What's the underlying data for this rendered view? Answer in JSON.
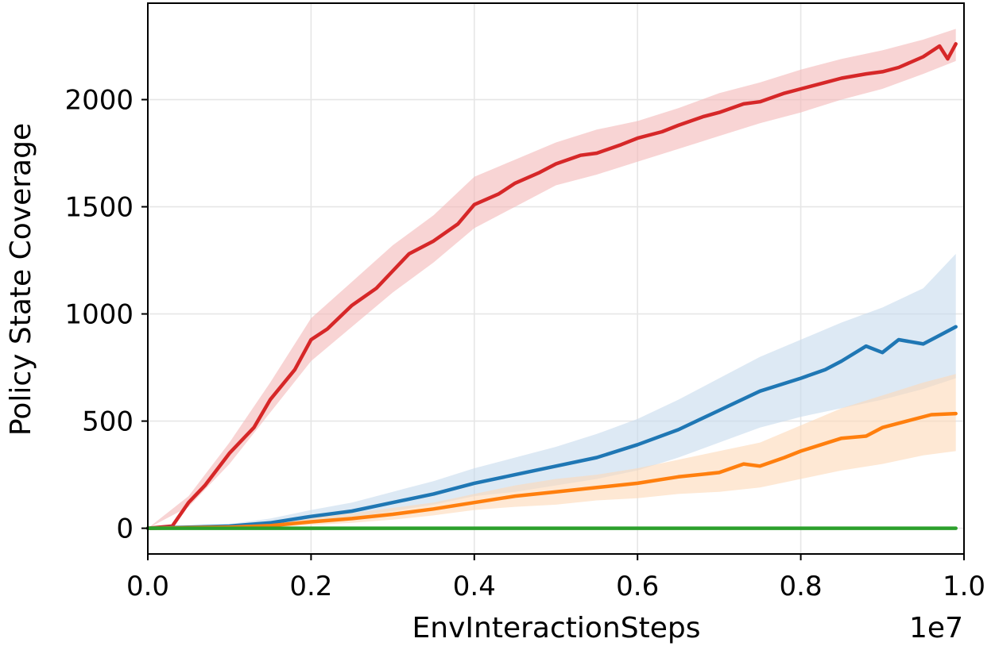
{
  "chart_data": {
    "type": "line",
    "title": "",
    "xlabel": "EnvInteractionSteps",
    "ylabel": "Policy State Coverage",
    "x_offset_label": "1e7",
    "xlim": [
      0.0,
      1.0
    ],
    "ylim": [
      -120,
      2450
    ],
    "x_ticks": [
      0.0,
      0.2,
      0.4,
      0.6,
      0.8,
      1.0
    ],
    "x_tick_labels": [
      "0.0",
      "0.2",
      "0.4",
      "0.6",
      "0.8",
      "1.0"
    ],
    "y_ticks": [
      0,
      500,
      1000,
      1500,
      2000
    ],
    "y_tick_labels": [
      "0",
      "500",
      "1000",
      "1500",
      "2000"
    ],
    "grid": true,
    "legend": "none",
    "series": [
      {
        "color": "#d62728",
        "fill": "#f4b8b8",
        "points": [
          [
            0.0,
            0
          ],
          [
            0.03,
            10
          ],
          [
            0.05,
            120
          ],
          [
            0.07,
            200
          ],
          [
            0.1,
            350
          ],
          [
            0.13,
            470
          ],
          [
            0.15,
            600
          ],
          [
            0.18,
            740
          ],
          [
            0.2,
            880
          ],
          [
            0.22,
            930
          ],
          [
            0.25,
            1040
          ],
          [
            0.28,
            1120
          ],
          [
            0.3,
            1200
          ],
          [
            0.32,
            1280
          ],
          [
            0.35,
            1340
          ],
          [
            0.38,
            1420
          ],
          [
            0.4,
            1510
          ],
          [
            0.43,
            1560
          ],
          [
            0.45,
            1610
          ],
          [
            0.48,
            1660
          ],
          [
            0.5,
            1700
          ],
          [
            0.53,
            1740
          ],
          [
            0.55,
            1750
          ],
          [
            0.58,
            1790
          ],
          [
            0.6,
            1820
          ],
          [
            0.63,
            1850
          ],
          [
            0.65,
            1880
          ],
          [
            0.68,
            1920
          ],
          [
            0.7,
            1940
          ],
          [
            0.73,
            1980
          ],
          [
            0.75,
            1990
          ],
          [
            0.78,
            2030
          ],
          [
            0.8,
            2050
          ],
          [
            0.83,
            2080
          ],
          [
            0.85,
            2100
          ],
          [
            0.88,
            2120
          ],
          [
            0.9,
            2130
          ],
          [
            0.92,
            2150
          ],
          [
            0.95,
            2200
          ],
          [
            0.97,
            2250
          ],
          [
            0.98,
            2190
          ],
          [
            0.99,
            2260
          ]
        ],
        "band": [
          [
            0.0,
            0,
            0
          ],
          [
            0.05,
            100,
            150
          ],
          [
            0.1,
            300,
            400
          ],
          [
            0.15,
            540,
            680
          ],
          [
            0.2,
            780,
            980
          ],
          [
            0.25,
            940,
            1150
          ],
          [
            0.3,
            1100,
            1320
          ],
          [
            0.35,
            1240,
            1460
          ],
          [
            0.4,
            1400,
            1640
          ],
          [
            0.45,
            1500,
            1720
          ],
          [
            0.5,
            1600,
            1800
          ],
          [
            0.55,
            1650,
            1860
          ],
          [
            0.6,
            1710,
            1900
          ],
          [
            0.65,
            1770,
            1960
          ],
          [
            0.7,
            1830,
            2030
          ],
          [
            0.75,
            1890,
            2080
          ],
          [
            0.8,
            1940,
            2140
          ],
          [
            0.85,
            2000,
            2190
          ],
          [
            0.9,
            2050,
            2230
          ],
          [
            0.95,
            2120,
            2280
          ],
          [
            0.99,
            2180,
            2330
          ]
        ]
      },
      {
        "color": "#1f77b4",
        "fill": "#c6dbed",
        "points": [
          [
            0.0,
            0
          ],
          [
            0.1,
            10
          ],
          [
            0.15,
            25
          ],
          [
            0.2,
            55
          ],
          [
            0.25,
            80
          ],
          [
            0.3,
            120
          ],
          [
            0.35,
            160
          ],
          [
            0.4,
            210
          ],
          [
            0.45,
            250
          ],
          [
            0.5,
            290
          ],
          [
            0.55,
            330
          ],
          [
            0.6,
            390
          ],
          [
            0.65,
            460
          ],
          [
            0.7,
            550
          ],
          [
            0.75,
            640
          ],
          [
            0.8,
            700
          ],
          [
            0.83,
            740
          ],
          [
            0.85,
            780
          ],
          [
            0.88,
            850
          ],
          [
            0.9,
            820
          ],
          [
            0.92,
            880
          ],
          [
            0.95,
            860
          ],
          [
            0.97,
            900
          ],
          [
            0.99,
            940
          ]
        ],
        "band": [
          [
            0.0,
            0,
            0
          ],
          [
            0.1,
            5,
            20
          ],
          [
            0.15,
            15,
            45
          ],
          [
            0.2,
            35,
            85
          ],
          [
            0.25,
            50,
            120
          ],
          [
            0.3,
            80,
            170
          ],
          [
            0.35,
            110,
            220
          ],
          [
            0.4,
            150,
            280
          ],
          [
            0.45,
            170,
            330
          ],
          [
            0.5,
            200,
            380
          ],
          [
            0.55,
            230,
            440
          ],
          [
            0.6,
            270,
            510
          ],
          [
            0.65,
            330,
            600
          ],
          [
            0.7,
            400,
            700
          ],
          [
            0.75,
            470,
            800
          ],
          [
            0.8,
            520,
            880
          ],
          [
            0.85,
            560,
            960
          ],
          [
            0.9,
            600,
            1030
          ],
          [
            0.95,
            650,
            1120
          ],
          [
            0.99,
            700,
            1280
          ]
        ]
      },
      {
        "color": "#ff7f0e",
        "fill": "#fdd9b7",
        "points": [
          [
            0.0,
            0
          ],
          [
            0.1,
            5
          ],
          [
            0.15,
            12
          ],
          [
            0.2,
            30
          ],
          [
            0.25,
            45
          ],
          [
            0.3,
            65
          ],
          [
            0.35,
            90
          ],
          [
            0.4,
            120
          ],
          [
            0.45,
            150
          ],
          [
            0.5,
            170
          ],
          [
            0.55,
            190
          ],
          [
            0.6,
            210
          ],
          [
            0.65,
            240
          ],
          [
            0.7,
            260
          ],
          [
            0.73,
            300
          ],
          [
            0.75,
            290
          ],
          [
            0.78,
            330
          ],
          [
            0.8,
            360
          ],
          [
            0.85,
            420
          ],
          [
            0.88,
            430
          ],
          [
            0.9,
            470
          ],
          [
            0.93,
            500
          ],
          [
            0.96,
            530
          ],
          [
            0.99,
            535
          ]
        ],
        "band": [
          [
            0.0,
            0,
            0
          ],
          [
            0.1,
            0,
            12
          ],
          [
            0.15,
            5,
            25
          ],
          [
            0.2,
            15,
            50
          ],
          [
            0.25,
            25,
            70
          ],
          [
            0.3,
            40,
            95
          ],
          [
            0.35,
            60,
            120
          ],
          [
            0.4,
            85,
            160
          ],
          [
            0.45,
            100,
            200
          ],
          [
            0.5,
            110,
            230
          ],
          [
            0.55,
            130,
            250
          ],
          [
            0.6,
            140,
            280
          ],
          [
            0.65,
            160,
            320
          ],
          [
            0.7,
            170,
            360
          ],
          [
            0.75,
            190,
            400
          ],
          [
            0.8,
            230,
            480
          ],
          [
            0.85,
            270,
            560
          ],
          [
            0.9,
            300,
            620
          ],
          [
            0.95,
            340,
            680
          ],
          [
            0.99,
            360,
            720
          ]
        ]
      },
      {
        "color": "#2ca02c",
        "fill": "#c7e9c0",
        "points": [
          [
            0.0,
            0
          ],
          [
            0.99,
            0
          ]
        ],
        "band": [
          [
            0.0,
            0,
            0
          ],
          [
            0.99,
            0,
            0
          ]
        ]
      }
    ]
  }
}
